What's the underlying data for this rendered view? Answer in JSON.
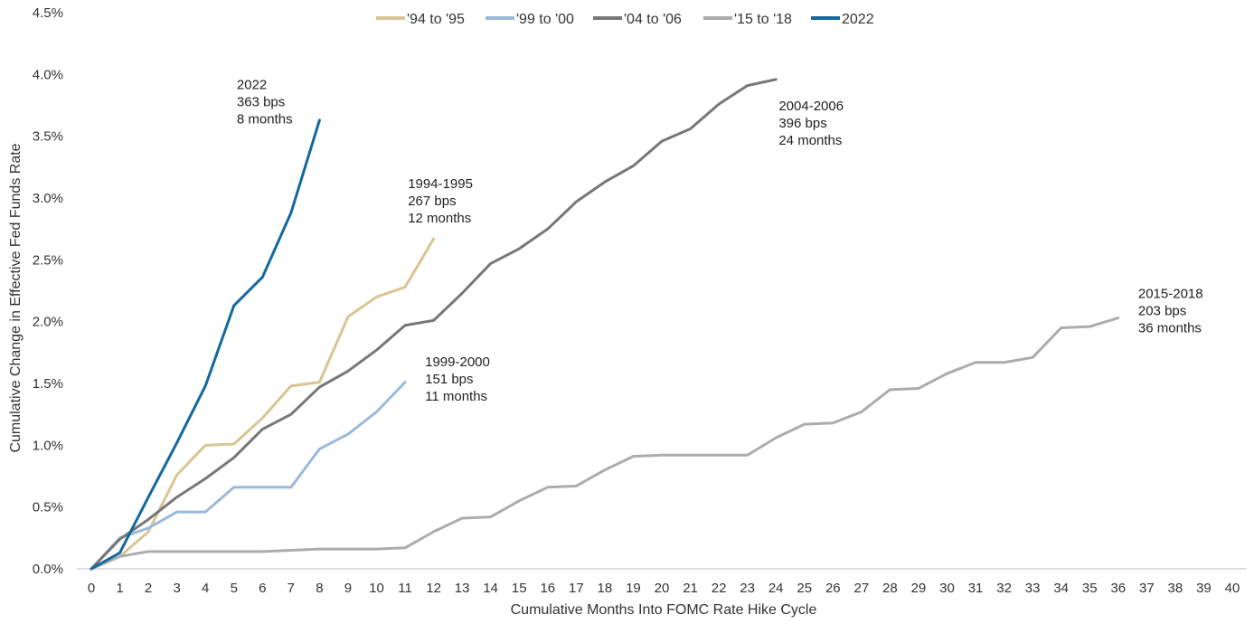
{
  "chart_data": {
    "type": "line",
    "xlabel": "Cumulative Months Into FOMC Rate Hike Cycle",
    "ylabel": "Cumulative Change in Effective Fed Funds Rate",
    "xlim": [
      0,
      40
    ],
    "ylim": [
      0,
      4.5
    ],
    "x_ticks": [
      "0",
      "1",
      "2",
      "3",
      "4",
      "5",
      "6",
      "7",
      "8",
      "9",
      "10",
      "11",
      "12",
      "13",
      "14",
      "15",
      "16",
      "17",
      "18",
      "19",
      "20",
      "21",
      "22",
      "23",
      "24",
      "25",
      "26",
      "27",
      "28",
      "29",
      "30",
      "31",
      "32",
      "33",
      "34",
      "35",
      "36",
      "37",
      "38",
      "39",
      "40"
    ],
    "y_ticks": [
      0,
      0.5,
      1.0,
      1.5,
      2.0,
      2.5,
      3.0,
      3.5,
      4.0,
      4.5
    ],
    "y_tick_labels": [
      "0.0%",
      "0.5%",
      "1.0%",
      "1.5%",
      "2.0%",
      "2.5%",
      "3.0%",
      "3.5%",
      "4.0%",
      "4.5%"
    ],
    "grid": false,
    "legend_position": "top-center",
    "series": [
      {
        "name": "'94 to '95",
        "color": "#d9c593",
        "values": [
          0,
          0.1,
          0.3,
          0.76,
          1.0,
          1.01,
          1.22,
          1.48,
          1.51,
          2.04,
          2.2,
          2.28,
          2.67
        ]
      },
      {
        "name": "'99 to '00",
        "color": "#9bbad9",
        "values": [
          0,
          0.25,
          0.33,
          0.46,
          0.46,
          0.66,
          0.66,
          0.66,
          0.97,
          1.09,
          1.27,
          1.51
        ]
      },
      {
        "name": "'04 to '06",
        "color": "#777777",
        "values": [
          0,
          0.24,
          0.4,
          0.58,
          0.73,
          0.9,
          1.13,
          1.25,
          1.47,
          1.6,
          1.77,
          1.97,
          2.01,
          2.23,
          2.47,
          2.59,
          2.75,
          2.97,
          3.13,
          3.26,
          3.46,
          3.56,
          3.76,
          3.91,
          3.96
        ]
      },
      {
        "name": "'15 to '18",
        "color": "#abadad",
        "values": [
          0,
          0.1,
          0.14,
          0.14,
          0.14,
          0.14,
          0.14,
          0.15,
          0.16,
          0.16,
          0.16,
          0.17,
          0.3,
          0.41,
          0.42,
          0.55,
          0.66,
          0.67,
          0.8,
          0.91,
          0.92,
          0.92,
          0.92,
          0.92,
          1.06,
          1.17,
          1.18,
          1.27,
          1.45,
          1.46,
          1.58,
          1.67,
          1.67,
          1.71,
          1.95,
          1.96,
          2.03
        ]
      },
      {
        "name": "2022",
        "color": "#13689e",
        "values": [
          0,
          0.13,
          0.58,
          1.02,
          1.48,
          2.13,
          2.36,
          2.88,
          3.63
        ]
      }
    ],
    "annotations": [
      {
        "id": "a2022",
        "lines": [
          "2022",
          "363 bps",
          "8 months"
        ],
        "x": 5.1,
        "y": 3.88
      },
      {
        "id": "a9495",
        "lines": [
          "1994-1995",
          "267 bps",
          "12 months"
        ],
        "x": 11.1,
        "y": 3.08
      },
      {
        "id": "a9900",
        "lines": [
          "1999-2000",
          "151 bps",
          "11 months"
        ],
        "x": 11.7,
        "y": 1.64
      },
      {
        "id": "a0406",
        "lines": [
          "2004-2006",
          "396 bps",
          "24 months"
        ],
        "x": 24.1,
        "y": 3.71
      },
      {
        "id": "a1518",
        "lines": [
          "2015-2018",
          "203 bps",
          "36 months"
        ],
        "x": 36.7,
        "y": 2.19
      }
    ]
  }
}
